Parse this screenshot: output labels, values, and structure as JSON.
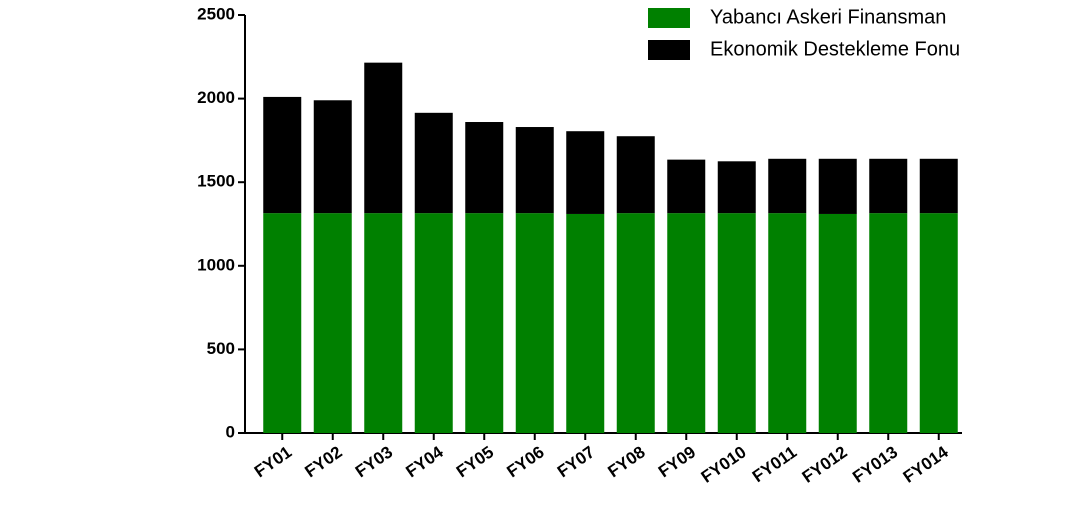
{
  "chart_data": {
    "type": "bar",
    "stacked": true,
    "categories": [
      "FY01",
      "FY02",
      "FY03",
      "FY04",
      "FY05",
      "FY06",
      "FY07",
      "FY08",
      "FY09",
      "FY010",
      "FY011",
      "FY012",
      "FY013",
      "FY014"
    ],
    "series": [
      {
        "name": "Yabancı Askeri Finansman",
        "color": "#008000",
        "values": [
          1315,
          1315,
          1315,
          1315,
          1315,
          1315,
          1310,
          1315,
          1315,
          1315,
          1315,
          1310,
          1315,
          1315
        ]
      },
      {
        "name": "Ekonomik Destekleme Fonu",
        "color": "#000000",
        "values": [
          695,
          675,
          900,
          600,
          545,
          515,
          495,
          460,
          320,
          310,
          325,
          330,
          325,
          325
        ]
      }
    ],
    "ylim": [
      0,
      2500
    ],
    "yticks": [
      0,
      500,
      1000,
      1500,
      2000,
      2500
    ]
  }
}
